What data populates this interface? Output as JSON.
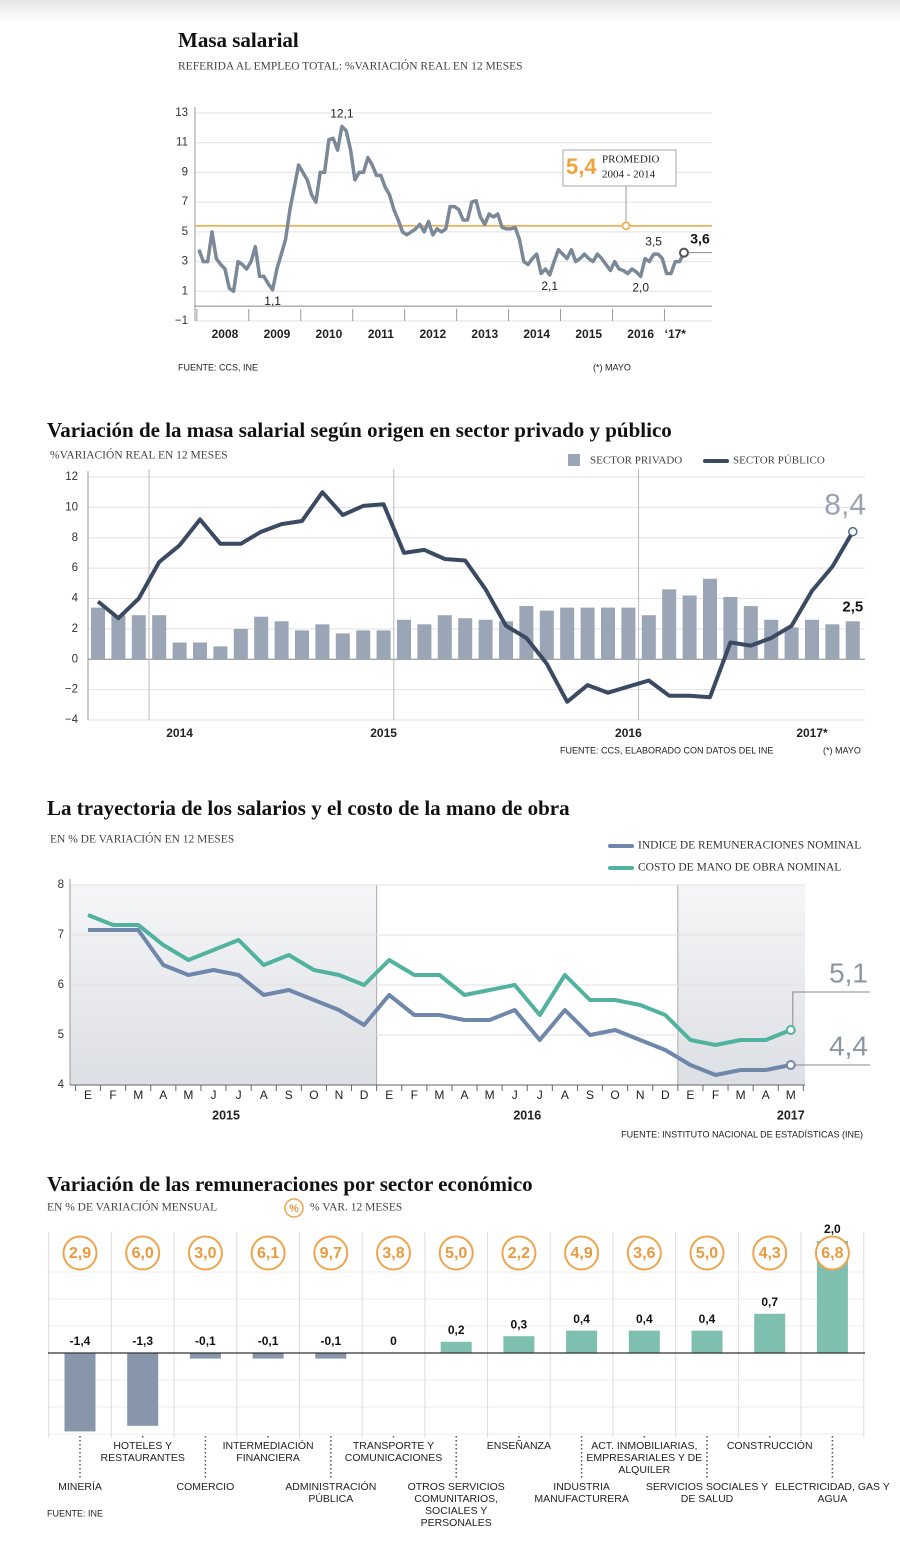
{
  "chart_data": [
    {
      "type": "line",
      "title": "Masa salarial",
      "subtitle": "REFERIDA AL EMPLEO TOTAL: %VARIACIÓN REAL EN 12 MESES",
      "source": "FUENTE: CCS, INE",
      "note": "(*) MAYO",
      "color": "#7b8898",
      "grid": true,
      "ylim": [
        -1,
        13
      ],
      "yticks": [
        13,
        11,
        9,
        7,
        5,
        3,
        1,
        {
          "value": -1,
          "label": "−1"
        }
      ],
      "reference": {
        "value": 5.4,
        "label": "5,4",
        "text": "PROMEDIO",
        "period": "2004 - 2014",
        "color": "#f2a33a"
      },
      "categories": [
        null,
        null,
        null,
        null,
        null,
        null,
        "2008",
        null,
        null,
        null,
        null,
        null,
        null,
        null,
        null,
        null,
        null,
        null,
        "2009",
        null,
        null,
        null,
        null,
        null,
        null,
        null,
        null,
        null,
        null,
        null,
        "2010",
        null,
        null,
        null,
        null,
        null,
        null,
        null,
        null,
        null,
        null,
        null,
        "2011",
        null,
        null,
        null,
        null,
        null,
        null,
        null,
        null,
        null,
        null,
        null,
        "2012",
        null,
        null,
        null,
        null,
        null,
        null,
        null,
        null,
        null,
        null,
        null,
        "2013",
        null,
        null,
        null,
        null,
        null,
        null,
        null,
        null,
        null,
        null,
        null,
        "2014",
        null,
        null,
        null,
        null,
        null,
        null,
        null,
        null,
        null,
        null,
        null,
        "2015",
        null,
        null,
        null,
        null,
        null,
        null,
        null,
        null,
        null,
        null,
        null,
        "2016",
        null,
        null,
        null,
        null,
        null,
        null,
        null,
        "‘17*",
        null,
        null
      ],
      "values": [
        3.8,
        3.0,
        3.0,
        5.0,
        3.2,
        2.8,
        2.5,
        1.2,
        1.0,
        3.0,
        2.8,
        2.5,
        3.0,
        4.0,
        2.0,
        2.0,
        1.5,
        1.1,
        2.5,
        3.5,
        4.5,
        6.5,
        8.0,
        9.5,
        9.0,
        8.5,
        7.5,
        7.0,
        9.0,
        9.0,
        11.2,
        11.3,
        10.5,
        12.1,
        11.8,
        10.5,
        8.5,
        9.0,
        9.0,
        10.0,
        9.5,
        8.8,
        8.8,
        8.0,
        7.5,
        6.5,
        5.8,
        5.0,
        4.8,
        5.0,
        5.2,
        5.5,
        5.0,
        5.7,
        4.8,
        5.2,
        5.0,
        5.2,
        6.7,
        6.7,
        6.5,
        5.8,
        5.8,
        7.0,
        7.1,
        6.0,
        5.5,
        6.2,
        6.0,
        6.2,
        5.3,
        5.2,
        5.2,
        5.3,
        4.5,
        3.0,
        2.8,
        3.2,
        3.5,
        2.2,
        2.5,
        2.1,
        3.0,
        3.8,
        3.5,
        3.2,
        3.8,
        3.0,
        3.2,
        3.5,
        3.2,
        3.0,
        3.5,
        3.2,
        2.8,
        2.4,
        3.0,
        2.5,
        2.4,
        2.2,
        2.5,
        2.3,
        2.0,
        3.2,
        3.0,
        3.5,
        3.5,
        3.2,
        2.2,
        2.2,
        3.0,
        3.0,
        3.6
      ],
      "value_labels": [
        null,
        null,
        null,
        null,
        null,
        null,
        null,
        null,
        null,
        null,
        null,
        null,
        null,
        null,
        null,
        null,
        null,
        "1,1",
        null,
        null,
        null,
        null,
        null,
        null,
        null,
        null,
        null,
        null,
        null,
        null,
        null,
        null,
        null,
        "12,1",
        null,
        null,
        null,
        null,
        null,
        null,
        null,
        null,
        null,
        null,
        null,
        null,
        null,
        null,
        null,
        null,
        null,
        null,
        null,
        null,
        null,
        null,
        null,
        null,
        null,
        null,
        null,
        null,
        null,
        null,
        null,
        null,
        null,
        null,
        null,
        null,
        null,
        null,
        null,
        null,
        null,
        null,
        null,
        null,
        null,
        null,
        null,
        "2,1",
        null,
        null,
        null,
        null,
        null,
        null,
        null,
        null,
        null,
        null,
        null,
        null,
        null,
        null,
        null,
        null,
        null,
        null,
        null,
        null,
        "2,0",
        null,
        null,
        "3,5",
        null,
        null,
        null,
        null,
        null,
        null,
        "3,6"
      ]
    },
    {
      "type": "bar_line",
      "title": "Variación de la masa salarial según origen en sector privado y público",
      "subtitle": "%VARIACIÓN REAL EN 12 MESES",
      "source": "FUENTE: CCS, ELABORADO CON DATOS DEL INE",
      "note": "(*) MAYO",
      "grid": true,
      "ylim": [
        -4,
        12
      ],
      "yticks": [
        12,
        10,
        8,
        6,
        4,
        2,
        0,
        {
          "value": -2,
          "label": "−2"
        },
        {
          "value": -4,
          "label": "−4"
        }
      ],
      "categories": [
        null,
        null,
        null,
        null,
        "2014",
        null,
        null,
        null,
        null,
        null,
        null,
        null,
        null,
        null,
        "2015",
        null,
        null,
        null,
        null,
        null,
        null,
        null,
        null,
        null,
        null,
        null,
        "2016",
        null,
        null,
        null,
        null,
        null,
        null,
        null,
        null,
        "2017*",
        null,
        null
      ],
      "series": [
        {
          "name": "SECTOR PRIVADO",
          "kind": "bar",
          "color": "#9aa5b6",
          "values": [
            3.4,
            2.9,
            2.9,
            2.9,
            1.1,
            1.1,
            0.85,
            2.0,
            2.8,
            2.5,
            1.9,
            2.3,
            1.7,
            1.9,
            1.9,
            2.6,
            2.3,
            2.9,
            2.7,
            2.6,
            2.5,
            3.5,
            3.2,
            3.4,
            3.4,
            3.4,
            3.4,
            2.9,
            4.6,
            4.2,
            5.3,
            4.1,
            3.5,
            2.6,
            2.1,
            2.6,
            2.3,
            2.5
          ],
          "value_labels": [
            null,
            null,
            null,
            null,
            null,
            null,
            null,
            null,
            null,
            null,
            null,
            null,
            null,
            null,
            null,
            null,
            null,
            null,
            null,
            null,
            null,
            null,
            null,
            null,
            null,
            null,
            null,
            null,
            null,
            null,
            null,
            null,
            null,
            null,
            null,
            null,
            null,
            "2,5"
          ]
        },
        {
          "name": "SECTOR PÚBLICO",
          "kind": "line",
          "color": "#3b4a63",
          "values": [
            3.8,
            2.7,
            4.0,
            6.4,
            7.5,
            9.2,
            7.6,
            7.6,
            8.4,
            8.9,
            9.1,
            11.0,
            9.5,
            10.1,
            10.2,
            7.0,
            7.2,
            6.6,
            6.5,
            4.6,
            2.2,
            1.4,
            -0.3,
            -2.8,
            -1.7,
            -2.2,
            -1.8,
            -1.4,
            -2.4,
            -2.4,
            -2.5,
            1.1,
            0.9,
            1.4,
            2.2,
            4.5,
            6.1,
            8.4
          ],
          "value_labels": [
            null,
            null,
            null,
            null,
            null,
            null,
            null,
            null,
            null,
            null,
            null,
            null,
            null,
            null,
            null,
            null,
            null,
            null,
            null,
            null,
            null,
            null,
            null,
            null,
            null,
            null,
            null,
            null,
            null,
            null,
            null,
            null,
            null,
            null,
            null,
            null,
            null,
            "8,4"
          ]
        }
      ]
    },
    {
      "type": "line",
      "title": "La trayectoria de los salarios y el costo de la mano de obra",
      "subtitle": "EN % DE VARIACIÓN EN 12 MESES",
      "source": "FUENTE: INSTITUTO NACIONAL DE ESTADÍSTICAS (INE)",
      "grid": true,
      "ylim": [
        4,
        8
      ],
      "yticks": [
        8,
        7,
        6,
        5,
        4
      ],
      "categories": [
        "E",
        "F",
        "M",
        "A",
        "M",
        "J",
        "J",
        "A",
        "S",
        "O",
        "N",
        "D",
        "E",
        "F",
        "M",
        "A",
        "M",
        "J",
        "J",
        "A",
        "S",
        "O",
        "N",
        "D",
        "E",
        "F",
        "M",
        "A",
        "M"
      ],
      "years": [
        "2015",
        "2016",
        "2017"
      ],
      "series": [
        {
          "name": "INDICE DE REMUNERACIONES NOMINAL",
          "color": "#6e87aa",
          "values": [
            7.1,
            7.1,
            7.1,
            6.4,
            6.2,
            6.3,
            6.2,
            5.8,
            5.9,
            5.7,
            5.5,
            5.2,
            5.8,
            5.4,
            5.4,
            5.3,
            5.3,
            5.5,
            4.9,
            5.5,
            5.0,
            5.1,
            4.9,
            4.7,
            4.4,
            4.2,
            4.3,
            4.3,
            4.4
          ],
          "value_labels": [
            null,
            null,
            null,
            null,
            null,
            null,
            null,
            null,
            null,
            null,
            null,
            null,
            null,
            null,
            null,
            null,
            null,
            null,
            null,
            null,
            null,
            null,
            null,
            null,
            null,
            null,
            null,
            null,
            "4,4"
          ]
        },
        {
          "name": "COSTO DE MANO DE OBRA NOMINAL",
          "color": "#52b2a0",
          "values": [
            7.4,
            7.2,
            7.2,
            6.8,
            6.5,
            6.7,
            6.9,
            6.4,
            6.6,
            6.3,
            6.2,
            6.0,
            6.5,
            6.2,
            6.2,
            5.8,
            5.9,
            6.0,
            5.4,
            6.2,
            5.7,
            5.7,
            5.6,
            5.4,
            4.9,
            4.8,
            4.9,
            4.9,
            5.1
          ],
          "value_labels": [
            null,
            null,
            null,
            null,
            null,
            null,
            null,
            null,
            null,
            null,
            null,
            null,
            null,
            null,
            null,
            null,
            null,
            null,
            null,
            null,
            null,
            null,
            null,
            null,
            null,
            null,
            null,
            null,
            "5,1"
          ]
        }
      ]
    },
    {
      "type": "bar",
      "title": "Variación de las remuneraciones por sector económico",
      "source": "FUENTE: INE",
      "categories": [
        "MINERÍA",
        "HOTELES Y RESTAURANTES",
        "COMERCIO",
        "INTERMEDIACIÓN FINANCIERA",
        "ADMINISTRACIÓN PÚBLICA",
        "TRANSPORTE Y COMUNICACIONES",
        "OTROS SERVICIOS COMUNITARIOS, SOCIALES Y PERSONALES",
        "ENSEÑANZA",
        "INDUSTRIA MANUFACTURERA",
        "ACT. INMOBILIARIAS, EMPRESARIALES Y DE ALQUILER",
        "SERVICIOS SOCIALES Y DE SALUD",
        "CONSTRUCCIÓN",
        "ELECTRICIDAD, GAS Y AGUA"
      ],
      "series": [
        {
          "name": "EN % DE VARIACIÓN MENSUAL",
          "color": "#7fbfb0",
          "negative_color": "#8796aa",
          "values": [
            -1.4,
            -1.3,
            -0.1,
            -0.1,
            -0.1,
            0,
            0.2,
            0.3,
            0.4,
            0.4,
            0.4,
            0.7,
            2.0
          ],
          "value_labels": [
            "-1,4",
            "-1,3",
            "-0,1",
            "-0,1",
            "-0,1",
            null,
            "0,2",
            "0,3",
            "0,4",
            "0,4",
            "0,4",
            "0,7",
            "2,0"
          ]
        },
        {
          "name": "% VAR. 12 MESES",
          "symbol": "%",
          "color": "#eea54e",
          "values": [
            2.9,
            6.0,
            3.0,
            6.1,
            9.7,
            3.8,
            5.0,
            2.2,
            4.9,
            3.6,
            5.0,
            4.3,
            6.8
          ],
          "value_labels": [
            "2,9",
            "6,0",
            "3,0",
            "6,1",
            "9,7",
            "3,8",
            "5,0",
            "2,2",
            "4,9",
            "3,6",
            "5,0",
            "4,3",
            "6,8"
          ]
        }
      ]
    }
  ]
}
